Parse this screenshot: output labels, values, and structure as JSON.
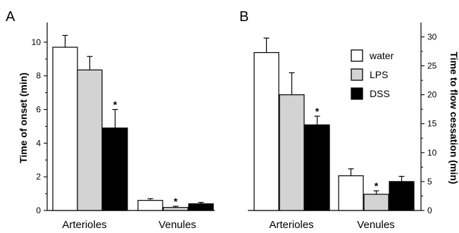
{
  "chart_data": [
    {
      "type": "bar",
      "panel": "A",
      "categories": [
        "Arterioles",
        "Venules"
      ],
      "series": [
        {
          "name": "water",
          "color": "#ffffff",
          "values": [
            9.7,
            0.6
          ],
          "errors": [
            0.7,
            0.1
          ]
        },
        {
          "name": "LPS",
          "color": "#d3d3d3",
          "values": [
            8.35,
            0.18
          ],
          "errors": [
            0.8,
            0.07
          ]
        },
        {
          "name": "DSS",
          "color": "#000000",
          "values": [
            4.9,
            0.4
          ],
          "errors": [
            1.1,
            0.08
          ]
        }
      ],
      "significance": [
        "",
        "*",
        "*",
        ""
      ],
      "significance_marks": [
        {
          "category": 0,
          "series": 2,
          "label": "*"
        },
        {
          "category": 1,
          "series": 1,
          "label": "*"
        }
      ],
      "ylabel": "Time of onset (min)",
      "ylim": [
        0,
        11
      ],
      "yticks": [
        "0",
        "2",
        "4",
        "6",
        "8",
        "10"
      ],
      "ytick_values": [
        0,
        2,
        4,
        6,
        8,
        10
      ],
      "y_axis_side": "left",
      "legend": "none",
      "grid": false
    },
    {
      "type": "bar",
      "panel": "B",
      "categories": [
        "Arterioles",
        "Venules"
      ],
      "series": [
        {
          "name": "water",
          "color": "#ffffff",
          "values": [
            27.3,
            6.0
          ],
          "errors": [
            2.5,
            1.2
          ]
        },
        {
          "name": "LPS",
          "color": "#d3d3d3",
          "values": [
            20.0,
            2.8
          ],
          "errors": [
            3.8,
            0.6
          ]
        },
        {
          "name": "DSS",
          "color": "#000000",
          "values": [
            14.8,
            5.0
          ],
          "errors": [
            1.5,
            0.9
          ]
        }
      ],
      "significance_marks": [
        {
          "category": 0,
          "series": 2,
          "label": "*"
        },
        {
          "category": 1,
          "series": 1,
          "label": "*"
        }
      ],
      "ylabel": "Time to flow cessation (min)",
      "ylim": [
        0,
        32
      ],
      "yticks": [
        "0",
        "5",
        "10",
        "15",
        "20",
        "25",
        "30"
      ],
      "ytick_values": [
        0,
        5,
        10,
        15,
        20,
        25,
        30
      ],
      "y_axis_side": "right",
      "legend": "top-right",
      "grid": false
    }
  ],
  "legend_entries": [
    "water",
    "LPS",
    "DSS"
  ]
}
